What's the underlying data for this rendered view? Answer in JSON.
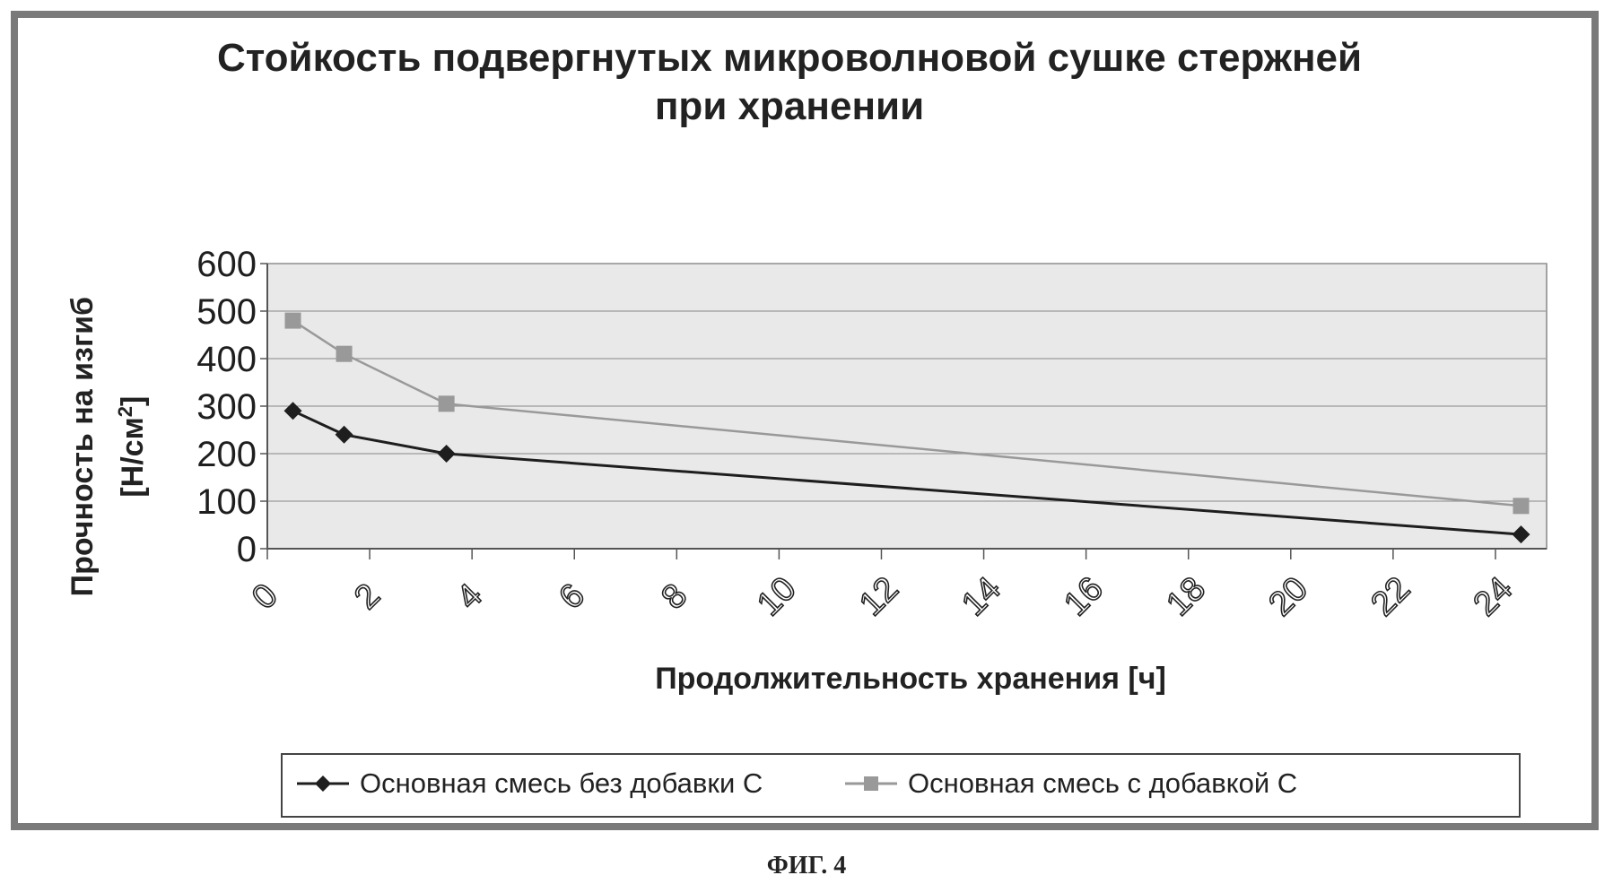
{
  "chart_data": {
    "type": "line",
    "title_line1": "Стойкость подвергнутых микроволновой сушке стержней",
    "title_line2": "при хранении",
    "ylabel_line1": "Прочность на изгиб",
    "ylabel_line2_pre": "[Н/см",
    "ylabel_line2_sup": "2",
    "ylabel_line2_post": "]",
    "xlabel": "Продолжительность хранения [ч]",
    "xlim": [
      0,
      25
    ],
    "ylim": [
      0,
      600
    ],
    "x_ticks": [
      0,
      2,
      4,
      6,
      8,
      10,
      12,
      14,
      16,
      18,
      20,
      22,
      24
    ],
    "y_ticks": [
      0,
      100,
      200,
      300,
      400,
      500,
      600
    ],
    "grid": true,
    "legend_position": "bottom",
    "plot_background": "#e9e9e9",
    "series": [
      {
        "name": "Основная смесь без добавки С",
        "marker": "diamond",
        "color": "#1e1e1e",
        "x": [
          0.5,
          1.5,
          3.5,
          24.5
        ],
        "y": [
          290,
          240,
          200,
          30
        ]
      },
      {
        "name": "Основная смесь с добавкой С",
        "marker": "square",
        "color": "#999999",
        "x": [
          0.5,
          1.5,
          3.5,
          24.5
        ],
        "y": [
          480,
          410,
          305,
          90
        ]
      }
    ]
  },
  "caption": "ФИГ. 4"
}
